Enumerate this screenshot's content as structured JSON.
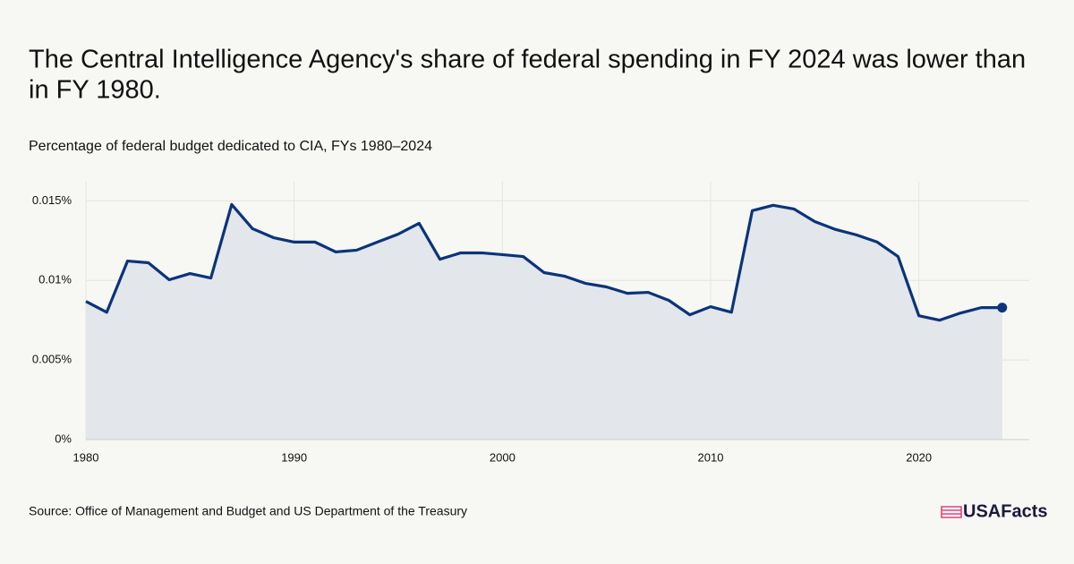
{
  "chart_data": {
    "type": "line",
    "title": "The Central Intelligence Agency's share of federal spending in FY 2024 was lower than in FY 1980.",
    "subtitle": "Percentage of federal budget dedicated to CIA, FYs 1980–2024",
    "source": "Source: Office of Management and Budget and US Department of the Treasury",
    "logo": "USAFacts",
    "x": [
      1980,
      1981,
      1982,
      1983,
      1984,
      1985,
      1986,
      1987,
      1988,
      1989,
      1990,
      1991,
      1992,
      1993,
      1994,
      1995,
      1996,
      1997,
      1998,
      1999,
      2000,
      2001,
      2002,
      2003,
      2004,
      2005,
      2006,
      2007,
      2008,
      2009,
      2010,
      2011,
      2012,
      2013,
      2014,
      2015,
      2016,
      2017,
      2018,
      2019,
      2020,
      2021,
      2022,
      2023,
      2024
    ],
    "values": [
      0.00868,
      0.008,
      0.01122,
      0.01111,
      0.01004,
      0.01043,
      0.01015,
      0.01477,
      0.01325,
      0.01269,
      0.01241,
      0.01241,
      0.01179,
      0.0119,
      0.01241,
      0.01291,
      0.01359,
      0.01133,
      0.01173,
      0.01173,
      0.01162,
      0.0115,
      0.01049,
      0.01026,
      0.00981,
      0.00959,
      0.00919,
      0.00925,
      0.00874,
      0.00784,
      0.00835,
      0.008,
      0.01438,
      0.01472,
      0.01449,
      0.0137,
      0.0132,
      0.01286,
      0.01241,
      0.0115,
      0.00778,
      0.0075,
      0.00795,
      0.00829,
      0.00829
    ],
    "color": "#0b347a",
    "area_color": "#e3e6ea",
    "xlim": [
      1980,
      2025.3
    ],
    "xticks": [
      1980,
      1990,
      2000,
      2010,
      2020
    ],
    "ylim": [
      0,
      0.0162
    ],
    "yticks": [
      {
        "value": 0,
        "label": "0%"
      },
      {
        "value": 0.005,
        "label": "0.005%"
      },
      {
        "value": 0.01,
        "label": "0.01%"
      },
      {
        "value": 0.015,
        "label": "0.015%"
      }
    ],
    "grid": true
  }
}
